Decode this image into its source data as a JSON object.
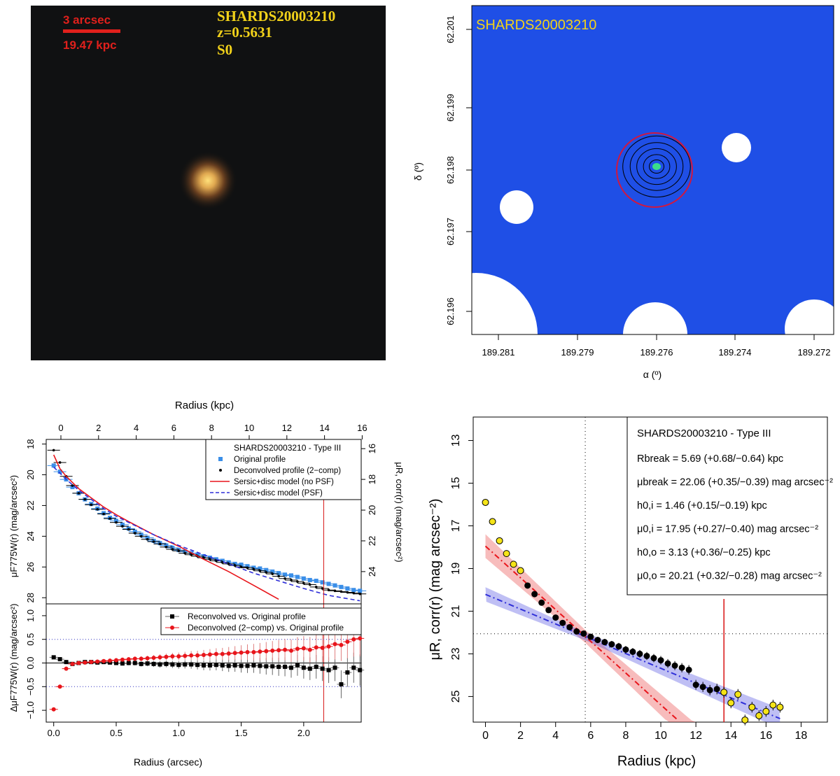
{
  "colors": {
    "scale_red": "#e0201c",
    "label_yellow": "#f2d21a",
    "map_blue": "#1f4fe6",
    "fit_red": "#e8151b",
    "fit_blue": "#2f2fd8",
    "orig_blue": "#3a8ee8",
    "point_yellow": "#f5e418",
    "break_red": "#d81414"
  },
  "image_panel": {
    "scale_arcsec": "3 arcsec",
    "scale_kpc": "19.47 kpc",
    "id_label": "SHARDS20003210",
    "z_label": "z=0.5631",
    "type_label": "S0"
  },
  "map_panel": {
    "id_label": "SHARDS20003210",
    "xlabel": "α (º)",
    "ylabel": "δ (º)",
    "x_ticks": [
      "189.281",
      "189.279",
      "189.276",
      "189.274",
      "189.272"
    ],
    "y_ticks": [
      "62.201",
      "62.199",
      "62.198",
      "62.197",
      "62.196"
    ]
  },
  "chart_data": [
    {
      "type": "scatter",
      "panel": "profile-top",
      "title": "",
      "top_xlabel": "Radius (kpc)",
      "top_x_ticks": [
        "0",
        "2",
        "4",
        "6",
        "8",
        "10",
        "12",
        "14",
        "16"
      ],
      "ylabel_left": "μF775W(r) (mag/arcsec²)",
      "ylabel_right": "μR, corr(r) (mag/arcsec²)",
      "y_ticks_left": [
        "18",
        "20",
        "22",
        "24",
        "26",
        "28"
      ],
      "y_ticks_right": [
        "16",
        "18",
        "20",
        "22",
        "24"
      ],
      "xlim": [
        -0.06,
        2.46
      ],
      "ylim": [
        28.4,
        17.7
      ],
      "legend": {
        "title": "SHARDS20003210   -   Type III",
        "entries": [
          "Original profile",
          "Deconvolved profile (2−comp)",
          "Sersic+disc model (no PSF)",
          "Sersic+disc model (PSF)"
        ]
      },
      "series": [
        {
          "name": "Original profile",
          "x": [
            0.0,
            0.05,
            0.1,
            0.15,
            0.2,
            0.25,
            0.3,
            0.35,
            0.4,
            0.45,
            0.5,
            0.55,
            0.6,
            0.65,
            0.7,
            0.75,
            0.8,
            0.85,
            0.9,
            0.95,
            1.0,
            1.05,
            1.1,
            1.15,
            1.2,
            1.25,
            1.3,
            1.35,
            1.4,
            1.45,
            1.5,
            1.55,
            1.6,
            1.65,
            1.7,
            1.75,
            1.8,
            1.85,
            1.9,
            1.95,
            2.0,
            2.05,
            2.1,
            2.15,
            2.2,
            2.25,
            2.3,
            2.35,
            2.4,
            2.45
          ],
          "y": [
            19.4,
            19.8,
            20.3,
            20.8,
            21.2,
            21.6,
            21.9,
            22.2,
            22.5,
            22.8,
            23.0,
            23.25,
            23.5,
            23.7,
            23.9,
            24.1,
            24.3,
            24.45,
            24.6,
            24.75,
            24.9,
            25.0,
            25.1,
            25.2,
            25.3,
            25.4,
            25.5,
            25.6,
            25.7,
            25.8,
            25.85,
            25.95,
            26.05,
            26.1,
            26.2,
            26.3,
            26.4,
            26.5,
            26.55,
            26.65,
            26.75,
            26.85,
            26.9,
            27.0,
            27.1,
            27.2,
            27.3,
            27.4,
            27.5,
            27.55
          ]
        },
        {
          "name": "Deconvolved profile (2−comp)",
          "x": [
            0.0,
            0.05,
            0.1,
            0.15,
            0.2,
            0.25,
            0.3,
            0.35,
            0.4,
            0.45,
            0.5,
            0.55,
            0.6,
            0.65,
            0.7,
            0.75,
            0.8,
            0.85,
            0.9,
            0.95,
            1.0,
            1.05,
            1.1,
            1.15,
            1.2,
            1.25,
            1.3,
            1.35,
            1.4,
            1.45,
            1.5,
            1.55,
            1.6,
            1.65,
            1.7,
            1.75,
            1.8,
            1.85,
            1.9,
            1.95,
            2.0,
            2.05,
            2.1,
            2.15,
            2.2,
            2.25,
            2.3,
            2.35,
            2.4,
            2.45
          ],
          "y": [
            18.4,
            19.2,
            20.1,
            20.7,
            21.2,
            21.6,
            21.95,
            22.25,
            22.55,
            22.85,
            23.1,
            23.35,
            23.55,
            23.8,
            24.0,
            24.2,
            24.35,
            24.5,
            24.7,
            24.85,
            24.95,
            25.1,
            25.2,
            25.3,
            25.4,
            25.5,
            25.6,
            25.7,
            25.8,
            25.9,
            26.0,
            26.05,
            26.15,
            26.25,
            26.35,
            26.45,
            26.6,
            26.75,
            26.85,
            26.95,
            27.05,
            27.15,
            27.3,
            27.4,
            27.5,
            27.55,
            27.6,
            27.65,
            27.7,
            27.75
          ]
        },
        {
          "name": "Sersic+disc model (no PSF)",
          "x": [
            0.0,
            0.05,
            0.1,
            0.2,
            0.3,
            0.4,
            0.5,
            0.6,
            0.8,
            1.0,
            1.2,
            1.4,
            1.6,
            1.8
          ],
          "y": [
            18.7,
            19.6,
            20.1,
            20.9,
            21.5,
            22.1,
            22.6,
            23.05,
            23.9,
            24.65,
            25.5,
            26.3,
            27.2,
            28.1
          ]
        },
        {
          "name": "Sersic+disc model (PSF)",
          "x": [
            0.0,
            0.1,
            0.2,
            0.3,
            0.4,
            0.5,
            0.6,
            0.8,
            1.0,
            1.2,
            1.4,
            1.6,
            1.8,
            2.0,
            2.2,
            2.45
          ],
          "y": [
            19.5,
            20.3,
            21.0,
            21.6,
            22.2,
            22.7,
            23.1,
            23.9,
            24.6,
            25.2,
            25.8,
            26.4,
            26.9,
            27.4,
            27.85,
            28.2
          ]
        }
      ],
      "r_break_arcsec": 2.16
    },
    {
      "type": "scatter",
      "panel": "profile-residual",
      "xlabel": "Radius (arcsec)",
      "x_ticks": [
        "0.0",
        "0.5",
        "1.0",
        "1.5",
        "2.0"
      ],
      "ylabel": "ΔμF775W(r) (mag/arcsec²)",
      "y_ticks": [
        "1.0",
        "0.5",
        "0.0",
        "−0.5",
        "−1.0"
      ],
      "xlim": [
        -0.06,
        2.46
      ],
      "ylim": [
        -1.25,
        1.25
      ],
      "legend": {
        "entries": [
          "Reconvolved vs. Original profile",
          "Deconvolved (2−comp) vs. Original profile"
        ]
      },
      "series": [
        {
          "name": "Reconvolved vs. Original profile",
          "x": [
            0.0,
            0.05,
            0.1,
            0.15,
            0.2,
            0.25,
            0.3,
            0.35,
            0.4,
            0.45,
            0.5,
            0.55,
            0.6,
            0.65,
            0.7,
            0.75,
            0.8,
            0.85,
            0.9,
            0.95,
            1.0,
            1.05,
            1.1,
            1.15,
            1.2,
            1.25,
            1.3,
            1.35,
            1.4,
            1.45,
            1.5,
            1.55,
            1.6,
            1.65,
            1.7,
            1.75,
            1.8,
            1.85,
            1.9,
            1.95,
            2.0,
            2.05,
            2.1,
            2.15,
            2.2,
            2.25,
            2.3,
            2.35,
            2.4,
            2.45
          ],
          "y": [
            0.12,
            0.08,
            0.02,
            -0.02,
            0.0,
            0.02,
            0.02,
            0.01,
            0.02,
            0.01,
            0.0,
            -0.01,
            0.0,
            0.0,
            -0.02,
            -0.01,
            -0.02,
            -0.03,
            -0.02,
            -0.03,
            -0.04,
            -0.03,
            -0.03,
            -0.04,
            -0.05,
            -0.05,
            -0.04,
            -0.05,
            -0.06,
            -0.05,
            -0.06,
            -0.06,
            -0.05,
            -0.06,
            -0.07,
            -0.07,
            -0.08,
            -0.08,
            -0.1,
            -0.05,
            -0.1,
            -0.12,
            -0.08,
            -0.12,
            -0.15,
            -0.1,
            -0.45,
            -0.2,
            -0.1,
            -0.15
          ]
        },
        {
          "name": "Deconvolved (2−comp) vs. Original profile",
          "x": [
            0.0,
            0.05,
            0.1,
            0.15,
            0.2,
            0.25,
            0.3,
            0.35,
            0.4,
            0.45,
            0.5,
            0.55,
            0.6,
            0.65,
            0.7,
            0.75,
            0.8,
            0.85,
            0.9,
            0.95,
            1.0,
            1.05,
            1.1,
            1.15,
            1.2,
            1.25,
            1.3,
            1.35,
            1.4,
            1.45,
            1.5,
            1.55,
            1.6,
            1.65,
            1.7,
            1.75,
            1.8,
            1.85,
            1.9,
            1.95,
            2.0,
            2.05,
            2.1,
            2.15,
            2.2,
            2.25,
            2.3,
            2.35,
            2.4,
            2.45
          ],
          "y": [
            -0.98,
            -0.5,
            -0.12,
            -0.02,
            0.0,
            0.01,
            0.02,
            0.03,
            0.04,
            0.05,
            0.06,
            0.07,
            0.08,
            0.09,
            0.09,
            0.1,
            0.11,
            0.12,
            0.13,
            0.14,
            0.14,
            0.15,
            0.16,
            0.16,
            0.17,
            0.18,
            0.19,
            0.19,
            0.2,
            0.21,
            0.22,
            0.23,
            0.23,
            0.24,
            0.25,
            0.26,
            0.27,
            0.28,
            0.26,
            0.3,
            0.31,
            0.28,
            0.33,
            0.32,
            0.35,
            0.4,
            0.38,
            0.45,
            0.5,
            0.52
          ]
        }
      ]
    },
    {
      "type": "scatter",
      "panel": "break-fit",
      "xlabel": "Radius (kpc)",
      "ylabel": "μR, corr(r) (mag arcsec⁻²)",
      "x_ticks": [
        "0",
        "2",
        "4",
        "6",
        "8",
        "10",
        "12",
        "14",
        "16",
        "18"
      ],
      "y_ticks": [
        "13",
        "15",
        "17",
        "19",
        "21",
        "23",
        "25"
      ],
      "xlim": [
        -0.7,
        19.5
      ],
      "ylim": [
        26.2,
        11.9
      ],
      "legend": {
        "title": "SHARDS20003210   -   Type III",
        "lines": [
          "Rbreak = 5.69 (+0.68/−0.64) kpc",
          "μbreak = 22.06 (+0.35/−0.39) mag arcsec⁻²",
          "h0,i = 1.46 (+0.15/−0.19) kpc",
          "μ0,i = 17.95 (+0.27/−0.40) mag arcsec⁻²",
          "h0,o = 3.13 (+0.36/−0.25) kpc",
          "μ0,o = 20.21 (+0.32/−0.28) mag arcsec⁻²"
        ]
      },
      "r_break": 5.69,
      "mu_break": 22.06,
      "inner_fit": {
        "mu0": 17.95,
        "h": 1.46
      },
      "outer_fit": {
        "mu0": 20.21,
        "h": 3.13
      },
      "red_vertical_kpc": 13.6,
      "series": [
        {
          "name": "excluded (yellow)",
          "x": [
            0.0,
            0.4,
            0.8,
            1.2,
            1.6,
            2.0,
            13.6,
            14.0,
            14.4,
            14.8,
            15.2,
            15.6,
            16.0,
            16.4,
            16.8
          ],
          "y": [
            15.9,
            16.8,
            17.7,
            18.3,
            18.8,
            19.1,
            24.8,
            25.3,
            24.9,
            26.1,
            25.5,
            25.9,
            25.7,
            25.4,
            25.5
          ]
        },
        {
          "name": "fitted (black)",
          "x": [
            2.4,
            2.8,
            3.2,
            3.6,
            4.0,
            4.4,
            4.8,
            5.2,
            5.6,
            6.0,
            6.4,
            6.8,
            7.2,
            7.6,
            8.0,
            8.4,
            8.8,
            9.2,
            9.6,
            10.0,
            10.4,
            10.8,
            11.2,
            11.6,
            12.0,
            12.4,
            12.8,
            13.2
          ],
          "y": [
            19.8,
            20.2,
            20.6,
            20.95,
            21.3,
            21.55,
            21.75,
            21.95,
            22.05,
            22.2,
            22.35,
            22.45,
            22.55,
            22.65,
            22.8,
            22.9,
            23.0,
            23.1,
            23.2,
            23.3,
            23.45,
            23.55,
            23.65,
            23.75,
            24.45,
            24.55,
            24.7,
            24.65
          ]
        }
      ]
    }
  ]
}
